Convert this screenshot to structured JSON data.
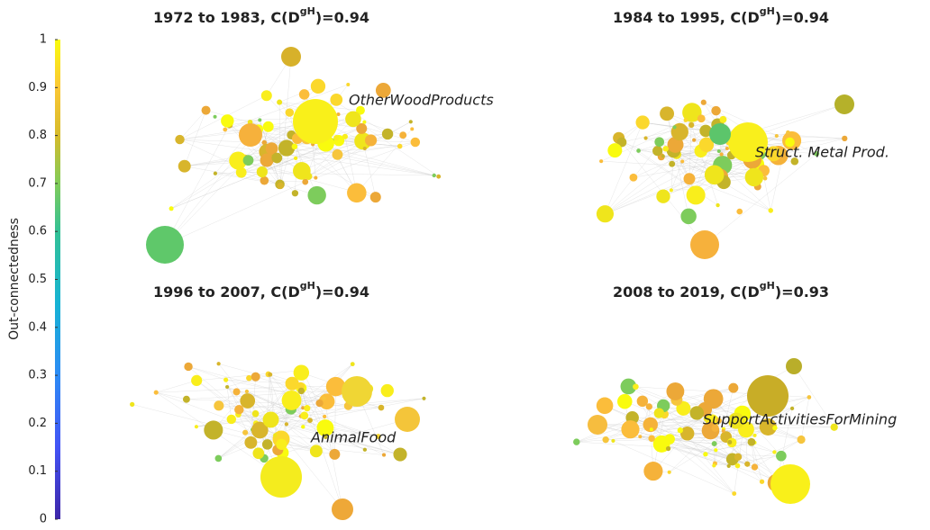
{
  "chart_data": {
    "type": "network",
    "colorbar": {
      "label": "Out-connectedness",
      "ylim": [
        0,
        1
      ],
      "yticks": [
        0,
        0.1,
        0.2,
        0.3,
        0.4,
        0.5,
        0.6,
        0.7,
        0.8,
        0.9,
        1
      ]
    },
    "panels": [
      {
        "title": "1972 to 1983, C(D",
        "title_sup": "gH",
        "title_end": ")=0.94",
        "annotation": "OtherWoodProducts"
      },
      {
        "title": "1984 to 1995, C(D",
        "title_sup": "gH",
        "title_end": ")=0.94",
        "annotation": "Struct. Metal Prod."
      },
      {
        "title": "1996 to 2007, C(D",
        "title_sup": "gH",
        "title_end": ")=0.94",
        "annotation": "AnimalFood"
      },
      {
        "title": "2008 to 2019, C(D",
        "title_sup": "gH",
        "title_end": ")=0.93",
        "annotation": "SupportActivitiesForMining"
      }
    ]
  }
}
